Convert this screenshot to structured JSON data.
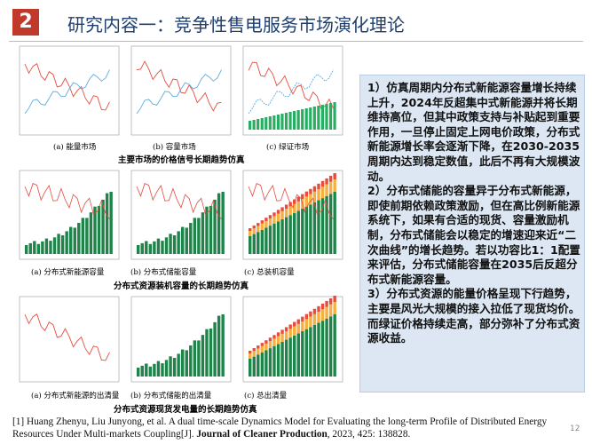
{
  "header": {
    "number": "2",
    "title": "研究内容一：竞争性售电服务市场演化理论"
  },
  "figures": [
    {
      "captions": [
        "(a) 能量市场",
        "(b) 容量市场",
        "(c) 绿证市场"
      ],
      "subtitle": "主要市场的价格信号长期趋势仿真"
    },
    {
      "captions": [
        "(a) 分布式新能源容量",
        "(b) 分布式储能容量",
        "(c) 总装机容量"
      ],
      "subtitle": "分布式资源装机容量的长期趋势仿真"
    },
    {
      "captions": [
        "(a) 分布式新能源的出清量",
        "(b) 分布式储能的出清量",
        "(c) 总出清量"
      ],
      "subtitle": "分布式资源现货发电量的长期趋势仿真"
    }
  ],
  "findings": [
    "1）仿真周期内分布式新能源容量增长持续上升，2024年反超集中式新能源并将长期维持高位，但其中政策支持与补贴起到重要作用，一旦停止固定上网电价政策，分布式新能源增长率会逐渐下降，在2030-2035周期内达到稳定数值，此后不再有大规模波动。",
    "2）分布式储能的容量异于分布式新能源，即使前期依赖政策激励，但在高比例新能源系统下，如果有合适的现货、容量激励机制，分布式储能会以稳定的增速迎来近“二次曲线”的增长趋势。若以功容比1：1配置来评估，分布式储能容量在2035后反超分布式新能源容量。",
    "3）分布式资源的能量价格呈现下行趋势，主要是风光大规模的接入拉低了现货均价。而绿证价格持续走高，部分弥补了分布式资源收益。"
  ],
  "footnote": {
    "prefix": "[1]  Huang Zhenyu,  Liu Junyong, et al. A dual time-scale Dynamics Model for Evaluating the long-term Profile of Distributed Energy Resources Under Multi-markets Coupling[J]. ",
    "journal": "Journal of Cleaner Production",
    "suffix": ", 2023, 425: 138828."
  },
  "page_number": "12"
}
